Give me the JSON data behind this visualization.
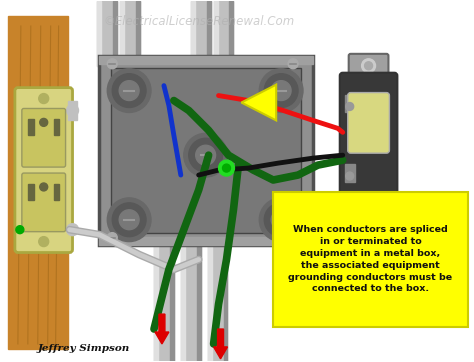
{
  "bg_color": "#ffffff",
  "title_text": "©ElectricalLicenseRenewal.Com",
  "title_color": "#b0b0b0",
  "title_fontsize": 8.5,
  "watermark_alpha": 0.6,
  "wood_color": "#c8832a",
  "wood_dark": "#a06818",
  "conduit_color": "#c0c0c0",
  "conduit_dark": "#909090",
  "conduit_light": "#e0e0e0",
  "box_outer": "#909090",
  "box_inner": "#787878",
  "box_edge": "#505050",
  "box_face": "#888888",
  "knockout_outer": "#707070",
  "knockout_ring": "#606060",
  "knockout_inner": "#808080",
  "outlet_body": "#d8d480",
  "outlet_edge": "#aaa840",
  "outlet_slot": "#666640",
  "switch_body": "#404040",
  "switch_trim": "#909090",
  "switch_paddle": "#d8d880",
  "annotation_fill": "#ffff00",
  "annotation_edge": "#cccc00",
  "annotation_text": "When conductors are spliced\nin or terminated to\nequipment in a metal box,\nthe associated equipment\ngrounding conductors must be\nconnected to the box.",
  "annotation_fontsize": 6.8,
  "wire_red": "#ee1111",
  "wire_black": "#111111",
  "wire_white": "#cccccc",
  "wire_white_edge": "#888888",
  "wire_green": "#116611",
  "wire_blue": "#1133cc",
  "wire_lw": 3.5,
  "author_text": "Jeffrey Simpson",
  "author_fontsize": 7.5
}
